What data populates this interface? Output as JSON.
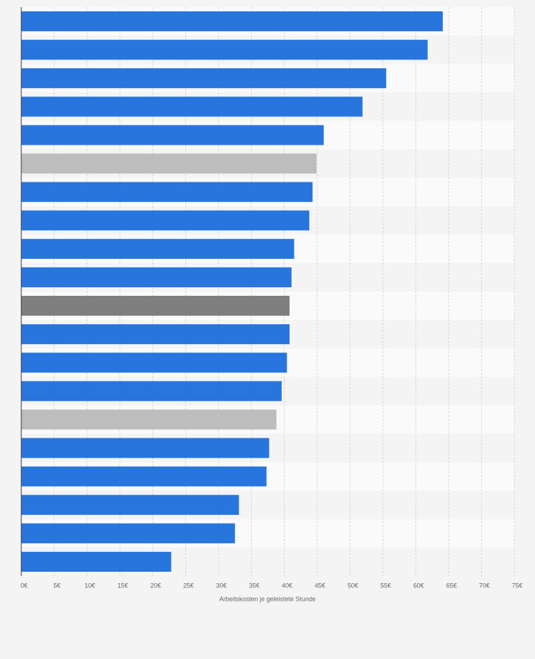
{
  "chart_data": {
    "type": "bar",
    "orientation": "horizontal",
    "xlabel": "Arbeitskosten je geleistete Stunde",
    "categories": [
      null,
      null,
      null,
      null,
      null,
      null,
      null,
      null,
      null,
      null,
      null,
      null,
      null,
      null,
      null,
      null,
      null,
      null,
      null,
      null
    ],
    "values": [
      64.1,
      61.8,
      55.5,
      51.9,
      46.0,
      44.9,
      44.3,
      43.8,
      41.5,
      41.1,
      40.8,
      40.8,
      40.4,
      39.6,
      38.8,
      37.7,
      37.3,
      33.1,
      32.5,
      22.8
    ],
    "colors": [
      "#2876dd",
      "#2876dd",
      "#2876dd",
      "#2876dd",
      "#2876dd",
      "#bdbdbd",
      "#2876dd",
      "#2876dd",
      "#2876dd",
      "#2876dd",
      "#7f7f7f",
      "#2876dd",
      "#2876dd",
      "#2876dd",
      "#bdbdbd",
      "#2876dd",
      "#2876dd",
      "#2876dd",
      "#2876dd",
      "#2876dd"
    ],
    "xlim": [
      0,
      75
    ],
    "xticks": [
      {
        "value": 0,
        "label": "0€"
      },
      {
        "value": 5,
        "label": "5€"
      },
      {
        "value": 10,
        "label": "10€"
      },
      {
        "value": 15,
        "label": "15€"
      },
      {
        "value": 20,
        "label": "20€"
      },
      {
        "value": 25,
        "label": "25€"
      },
      {
        "value": 30,
        "label": "30€"
      },
      {
        "value": 35,
        "label": "35€"
      },
      {
        "value": 40,
        "label": "40€"
      },
      {
        "value": 45,
        "label": "45€"
      },
      {
        "value": 50,
        "label": "50€"
      },
      {
        "value": 55,
        "label": "55€"
      },
      {
        "value": 60,
        "label": "60€"
      },
      {
        "value": 65,
        "label": "65€"
      },
      {
        "value": 70,
        "label": "70€"
      },
      {
        "value": 75,
        "label": "75€"
      }
    ],
    "grid": true
  }
}
